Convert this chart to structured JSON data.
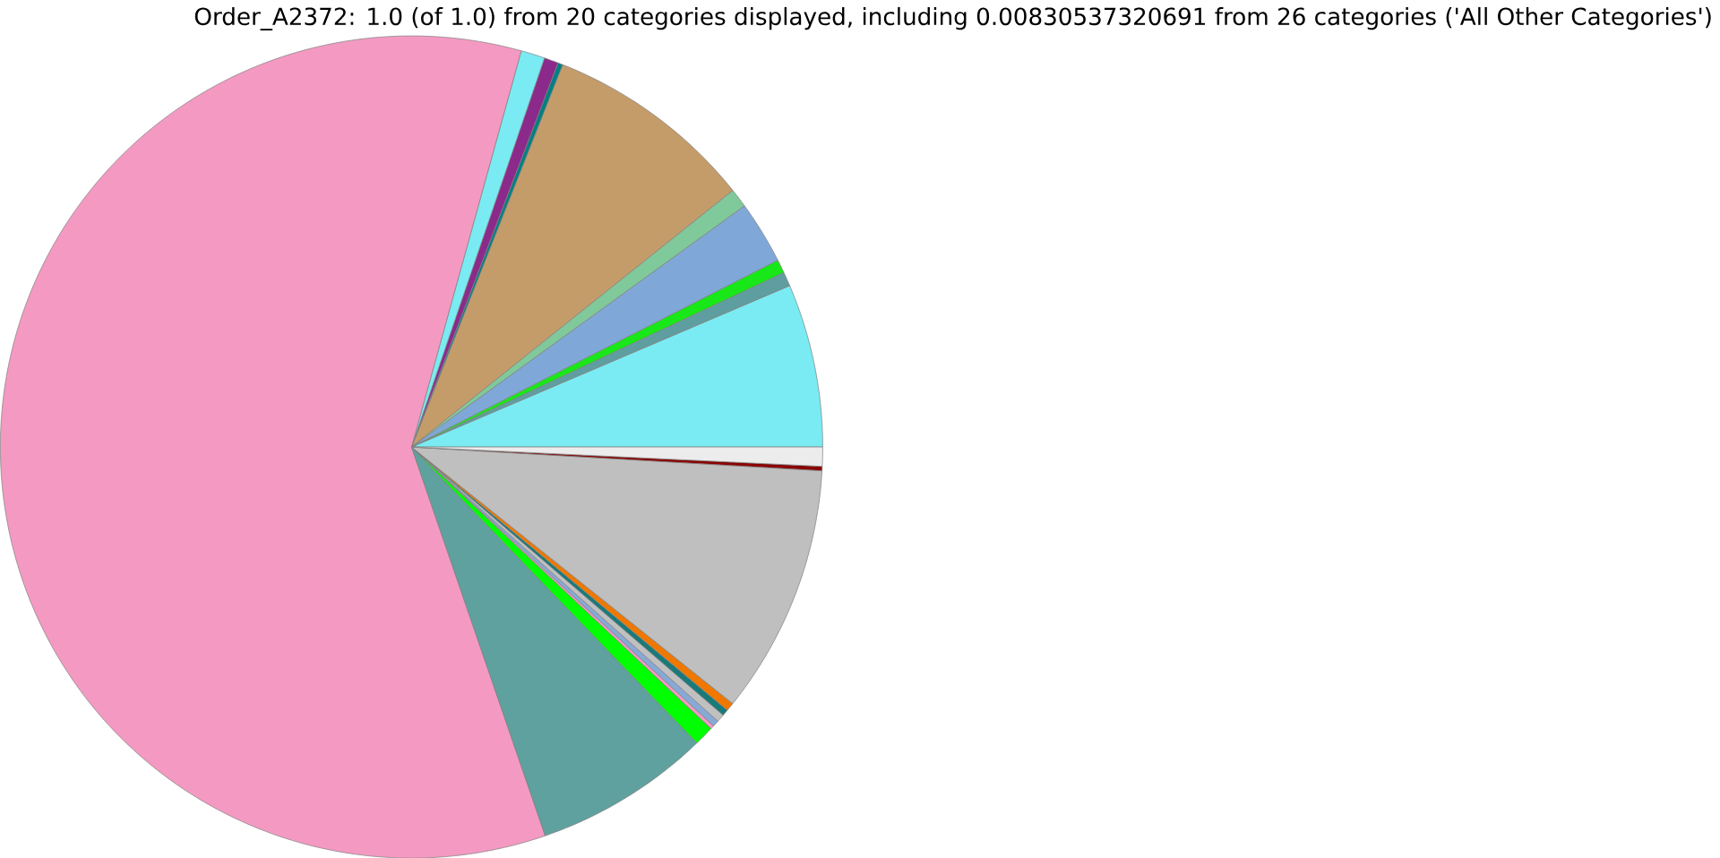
{
  "chart_data": {
    "type": "pie",
    "title": "Order_A2372: 1.0 (of 1.0) from 20 categories displayed, including 0.00830537320691 from 26 categories ('All Other Categories')",
    "categories": [
      null,
      null,
      null,
      null,
      null,
      null,
      null,
      null,
      null,
      null,
      null,
      null,
      null,
      null,
      null,
      null,
      null,
      null,
      null,
      null
    ],
    "values": [
      6.42,
      0.56,
      0.53,
      2.47,
      0.75,
      8.28,
      0.19,
      0.56,
      0.94,
      59.57,
      6.94,
      0.78,
      0.14,
      0.25,
      0.31,
      0.25,
      0.33,
      9.81,
      0.17,
      0.75
    ],
    "colors": [
      "#7aebf2",
      "#5f9ea0",
      "#18e818",
      "#7fa8d8",
      "#80c99a",
      "#c49c6a",
      "#008080",
      "#8b2a8b",
      "#7aebf2",
      "#f49ac2",
      "#5fa19e",
      "#00ff00",
      "#f49ac2",
      "#87a9d6",
      "#c0c0c0",
      "#1a7a7a",
      "#f07800",
      "#bfbfbf",
      "#8b0000",
      "#ececec"
    ]
  }
}
